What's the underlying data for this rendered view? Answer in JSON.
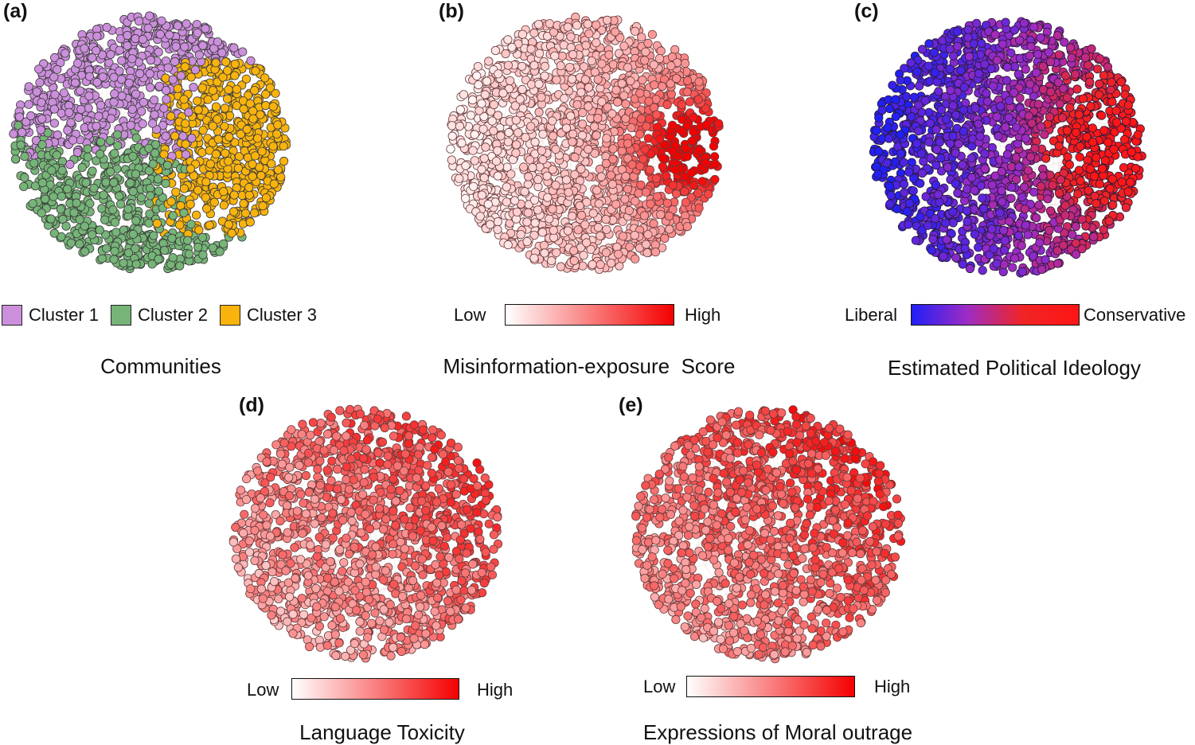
{
  "panels": {
    "a": {
      "letter": "(a)",
      "title": "Communities",
      "legend": [
        {
          "label": "Cluster 1",
          "color": "#cc8fdc"
        },
        {
          "label": "Cluster 2",
          "color": "#76b478"
        },
        {
          "label": "Cluster 3",
          "color": "#f8b30d"
        }
      ]
    },
    "b": {
      "letter": "(b)",
      "title": "Misinformation-exposure  Score",
      "low_label": "Low",
      "high_label": "High",
      "gradient": [
        "#ffffff",
        "#f40000"
      ]
    },
    "c": {
      "letter": "(c)",
      "title": "Estimated Political Ideology",
      "low_label": "Liberal",
      "high_label": "Conservative",
      "gradient": [
        "#2020f5",
        "#9d2cc4",
        "#f02424",
        "#ff1515"
      ]
    },
    "d": {
      "letter": "(d)",
      "title": "Language Toxicity",
      "low_label": "Low",
      "high_label": "High",
      "gradient": [
        "#ffffff",
        "#f40000"
      ]
    },
    "e": {
      "letter": "(e)",
      "title": "Expressions of Moral outrage",
      "low_label": "Low",
      "high_label": "High",
      "gradient": [
        "#ffffff",
        "#f40000"
      ]
    }
  }
}
